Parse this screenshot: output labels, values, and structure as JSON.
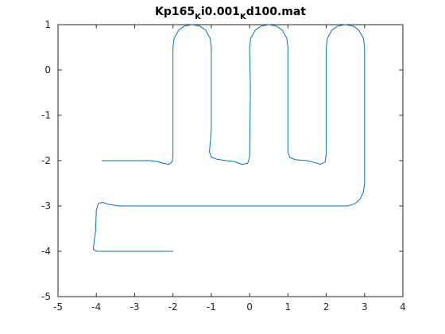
{
  "chart_data": {
    "type": "line",
    "title_parts": [
      {
        "text": "Kp165",
        "sub": false
      },
      {
        "text": "K",
        "sub": true
      },
      {
        "text": "i0.001",
        "sub": false
      },
      {
        "text": "K",
        "sub": true
      },
      {
        "text": "d100.mat",
        "sub": false
      }
    ],
    "xlabel": "",
    "ylabel": "",
    "xlim": [
      -5,
      4
    ],
    "ylim": [
      -5,
      1
    ],
    "xticks": [
      -5,
      -4,
      -3,
      -2,
      -1,
      0,
      1,
      2,
      3,
      4
    ],
    "yticks": [
      -5,
      -4,
      -3,
      -2,
      -1,
      0,
      1
    ],
    "grid": false,
    "line_color": "#0072BD",
    "series": [
      {
        "points": [
          [
            -3.85,
            -2.0
          ],
          [
            -2.6,
            -2.0
          ],
          [
            -2.4,
            -2.02
          ],
          [
            -2.25,
            -2.06
          ],
          [
            -2.1,
            -2.08
          ],
          [
            -2.02,
            -2.02
          ],
          [
            -2.0,
            -1.9
          ],
          [
            -2.0,
            0.5
          ],
          [
            -1.97,
            0.7
          ],
          [
            -1.85,
            0.88
          ],
          [
            -1.7,
            0.97
          ],
          [
            -1.5,
            1.0
          ],
          [
            -1.3,
            0.97
          ],
          [
            -1.15,
            0.88
          ],
          [
            -1.03,
            0.7
          ],
          [
            -1.0,
            0.5
          ],
          [
            -1.0,
            -1.3
          ],
          [
            -1.02,
            -1.55
          ],
          [
            -1.05,
            -1.8
          ],
          [
            -1.0,
            -1.92
          ],
          [
            -0.85,
            -1.97
          ],
          [
            -0.6,
            -2.0
          ],
          [
            -0.4,
            -2.02
          ],
          [
            -0.2,
            -2.08
          ],
          [
            -0.05,
            -2.06
          ],
          [
            0.0,
            -1.92
          ],
          [
            0.02,
            -0.4
          ],
          [
            0.0,
            0.5
          ],
          [
            0.03,
            0.7
          ],
          [
            0.15,
            0.88
          ],
          [
            0.3,
            0.97
          ],
          [
            0.5,
            1.0
          ],
          [
            0.7,
            0.97
          ],
          [
            0.85,
            0.88
          ],
          [
            0.97,
            0.7
          ],
          [
            1.0,
            0.5
          ],
          [
            1.0,
            -1.8
          ],
          [
            1.05,
            -1.93
          ],
          [
            1.2,
            -1.98
          ],
          [
            1.5,
            -2.0
          ],
          [
            1.7,
            -2.04
          ],
          [
            1.85,
            -2.08
          ],
          [
            1.97,
            -2.03
          ],
          [
            2.0,
            -1.85
          ],
          [
            2.0,
            0.5
          ],
          [
            2.03,
            0.7
          ],
          [
            2.15,
            0.88
          ],
          [
            2.3,
            0.97
          ],
          [
            2.5,
            1.0
          ],
          [
            2.7,
            0.97
          ],
          [
            2.85,
            0.88
          ],
          [
            2.97,
            0.7
          ],
          [
            3.0,
            0.5
          ],
          [
            3.0,
            -2.5
          ],
          [
            2.97,
            -2.7
          ],
          [
            2.88,
            -2.85
          ],
          [
            2.75,
            -2.95
          ],
          [
            2.55,
            -3.0
          ],
          [
            -3.4,
            -3.0
          ],
          [
            -3.7,
            -2.96
          ],
          [
            -3.85,
            -2.92
          ],
          [
            -3.95,
            -2.95
          ],
          [
            -4.0,
            -3.1
          ],
          [
            -4.02,
            -3.55
          ],
          [
            -4.05,
            -3.75
          ],
          [
            -4.08,
            -3.95
          ],
          [
            -4.0,
            -4.0
          ],
          [
            -2.0,
            -4.0
          ]
        ]
      }
    ]
  }
}
